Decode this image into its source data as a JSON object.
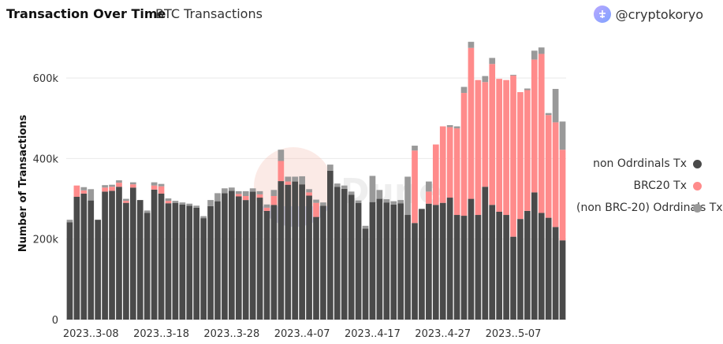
{
  "header": {
    "title": "Transaction Over Time",
    "subtitle": "BTC Transactions",
    "username": "@cryptokoryo"
  },
  "colors": {
    "non_ordinals": "#4a4a4a",
    "brc20": "#ff8b8b",
    "non_brc20_ordinals": "#999999"
  },
  "chart_data": {
    "type": "bar",
    "stacked": true,
    "ylabel": "Number of Transactions",
    "ylim": [
      0,
      700000
    ],
    "yticks": [
      0,
      200000,
      400000,
      600000
    ],
    "ytick_labels": [
      "0",
      "200k",
      "400k",
      "600k"
    ],
    "grid": true,
    "legend_placement": "right",
    "watermark": "Dune",
    "xtick_labels": [
      "2023..3-08",
      "2023..3-18",
      "2023..3-28",
      "2023..4-07",
      "2023..4-17",
      "2023..4-27",
      "2023..5-07"
    ],
    "xtick_index": [
      3,
      13,
      23,
      33,
      43,
      53,
      63
    ],
    "series": [
      {
        "name": "non Odrdinals Tx",
        "values": [
          242000,
          305000,
          313000,
          296000,
          248000,
          318000,
          320000,
          330000,
          290000,
          328000,
          297000,
          265000,
          323000,
          313000,
          289000,
          290000,
          286000,
          283000,
          278000,
          252000,
          282000,
          294000,
          314000,
          320000,
          306000,
          297000,
          318000,
          303000,
          270000,
          285000,
          344000,
          335000,
          343000,
          336000,
          308000,
          255000,
          283000,
          370000,
          330000,
          325000,
          310000,
          290000,
          226000,
          292000,
          300000,
          291000,
          286000,
          289000,
          260000,
          240000,
          275000,
          288000,
          285000,
          290000,
          303000,
          260000,
          258000,
          300000,
          260000,
          330000,
          285000,
          268000,
          260000,
          206000,
          250000,
          270000,
          316000,
          265000,
          253000,
          230000,
          197000
        ]
      },
      {
        "name": "BRC20 Tx",
        "values": [
          0,
          28000,
          8000,
          0,
          0,
          10000,
          10000,
          10000,
          5000,
          8000,
          0,
          0,
          10000,
          18000,
          6000,
          0,
          0,
          0,
          0,
          0,
          0,
          0,
          0,
          0,
          6000,
          10000,
          0,
          8000,
          8000,
          22000,
          50000,
          8000,
          0,
          0,
          8000,
          35000,
          0,
          0,
          0,
          0,
          0,
          0,
          0,
          0,
          0,
          0,
          0,
          0,
          0,
          180000,
          0,
          30000,
          150000,
          190000,
          175000,
          215000,
          305000,
          375000,
          335000,
          260000,
          350000,
          330000,
          335000,
          400000,
          315000,
          300000,
          330000,
          395000,
          255000,
          260000,
          225000
        ]
      },
      {
        "name": "(non BRC-20) Odrdinals Tx",
        "values": [
          6000,
          0,
          8000,
          28000,
          0,
          6000,
          5000,
          6000,
          5000,
          5000,
          0,
          6000,
          8000,
          6000,
          6000,
          5000,
          5000,
          5000,
          5000,
          5000,
          15000,
          20000,
          12000,
          8000,
          7000,
          12000,
          8000,
          8000,
          8000,
          15000,
          28000,
          12000,
          12000,
          20000,
          8000,
          8000,
          8000,
          15000,
          8000,
          8000,
          8000,
          6000,
          7000,
          65000,
          22000,
          8000,
          8000,
          8000,
          95000,
          12000,
          0,
          25000,
          0,
          0,
          5000,
          5000,
          15000,
          15000,
          0,
          15000,
          15000,
          0,
          0,
          2000,
          0,
          4000,
          22000,
          16000,
          5000,
          83000,
          70000
        ]
      }
    ]
  }
}
